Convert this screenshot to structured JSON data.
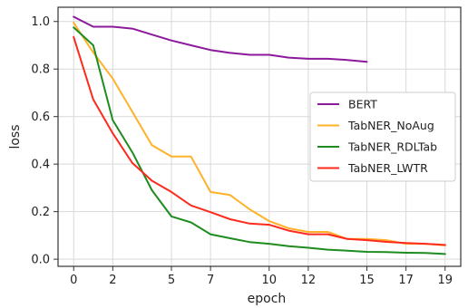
{
  "chart_data": {
    "type": "line",
    "xlabel": "epoch",
    "ylabel": "loss",
    "xlim": [
      -0.8,
      19.8
    ],
    "ylim": [
      -0.03,
      1.06
    ],
    "xticks": [
      0,
      2,
      5,
      7,
      10,
      12,
      15,
      17,
      19
    ],
    "yticks": [
      0.0,
      0.2,
      0.4,
      0.6,
      0.8,
      1.0
    ],
    "ytick_labels": [
      "0.0",
      "0.2",
      "0.4",
      "0.6",
      "0.8",
      "1.0"
    ],
    "grid": true,
    "legend_position": "center-right",
    "series": [
      {
        "name": "BERT",
        "color": "#8b1a9b",
        "x": [
          0,
          1,
          2,
          3,
          4,
          5,
          6,
          7,
          8,
          9,
          10,
          11,
          12,
          13,
          14,
          15
        ],
        "y": [
          1.02,
          0.978,
          0.978,
          0.97,
          0.945,
          0.92,
          0.9,
          0.88,
          0.868,
          0.86,
          0.86,
          0.848,
          0.843,
          0.843,
          0.838,
          0.83
        ]
      },
      {
        "name": "TabNER_NoAug",
        "color": "#ffb12a",
        "x": [
          0,
          1,
          2,
          3,
          4,
          5,
          6,
          7,
          8,
          9,
          10,
          11,
          12,
          13,
          14,
          15,
          16,
          17,
          18,
          19
        ],
        "y": [
          0.995,
          0.87,
          0.76,
          0.62,
          0.48,
          0.432,
          0.432,
          0.283,
          0.27,
          0.21,
          0.16,
          0.13,
          0.115,
          0.115,
          0.085,
          0.085,
          0.08,
          0.065,
          0.065,
          0.058
        ]
      },
      {
        "name": "TabNER_RDLTab",
        "color": "#1e8c1e",
        "x": [
          0,
          1,
          2,
          3,
          4,
          5,
          6,
          7,
          8,
          9,
          10,
          11,
          12,
          13,
          14,
          15,
          16,
          17,
          18,
          19
        ],
        "y": [
          0.975,
          0.9,
          0.585,
          0.45,
          0.29,
          0.18,
          0.155,
          0.105,
          0.088,
          0.072,
          0.065,
          0.055,
          0.048,
          0.04,
          0.036,
          0.031,
          0.03,
          0.027,
          0.026,
          0.022
        ]
      },
      {
        "name": "TabNER_LWTR",
        "color": "#ff2a1e",
        "x": [
          0,
          1,
          2,
          3,
          4,
          5,
          6,
          7,
          8,
          9,
          10,
          11,
          12,
          13,
          14,
          15,
          16,
          17,
          18,
          19
        ],
        "y": [
          0.935,
          0.672,
          0.53,
          0.405,
          0.33,
          0.283,
          0.226,
          0.198,
          0.168,
          0.15,
          0.145,
          0.12,
          0.105,
          0.105,
          0.085,
          0.08,
          0.073,
          0.068,
          0.065,
          0.06
        ]
      }
    ]
  }
}
